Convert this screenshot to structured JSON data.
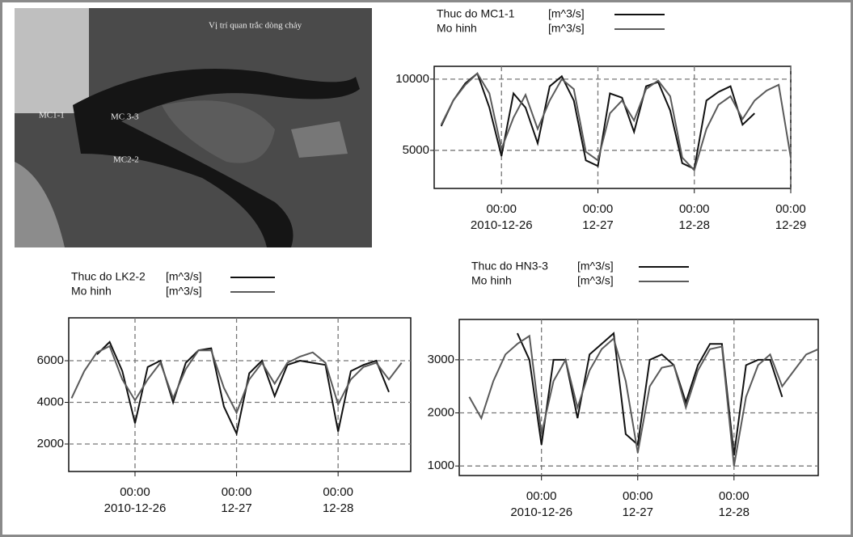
{
  "map": {
    "title": "Vị trí quan trắc dòng chảy",
    "labels": [
      "MC1-1",
      "MC 3-3",
      "MC2-2"
    ]
  },
  "chart_data": [
    {
      "type": "line",
      "legend": "above",
      "x": [
        "2010-12-25 09:00",
        "2010-12-25 12:00",
        "2010-12-25 15:00",
        "2010-12-25 18:00",
        "2010-12-25 21:00",
        "2010-12-26 00:00",
        "2010-12-26 03:00",
        "2010-12-26 06:00",
        "2010-12-26 09:00",
        "2010-12-26 12:00",
        "2010-12-26 15:00",
        "2010-12-26 18:00",
        "2010-12-26 21:00",
        "2010-12-27 00:00",
        "2010-12-27 03:00",
        "2010-12-27 06:00",
        "2010-12-27 09:00",
        "2010-12-27 12:00",
        "2010-12-27 15:00",
        "2010-12-27 18:00",
        "2010-12-27 21:00",
        "2010-12-28 00:00",
        "2010-12-28 03:00",
        "2010-12-28 06:00",
        "2010-12-28 09:00",
        "2010-12-28 12:00",
        "2010-12-28 15:00",
        "2010-12-28 18:00",
        "2010-12-28 21:00",
        "2010-12-29 00:00"
      ],
      "series": [
        {
          "name": "Thuc do MC1-1",
          "unit": "[m^3/s]",
          "color": "#111111",
          "values": [
            6700,
            8500,
            9700,
            10400,
            8000,
            4600,
            9000,
            8000,
            5500,
            9500,
            10200,
            8500,
            4300,
            3900,
            9000,
            8700,
            6300,
            9500,
            9800,
            7800,
            4100,
            3700,
            8500,
            9100,
            9500,
            6800,
            7600,
            null,
            null,
            null
          ]
        },
        {
          "name": "Mo hinh",
          "unit": "[m^3/s]",
          "color": "#5a5a5a",
          "values": [
            6800,
            8500,
            9600,
            10400,
            9000,
            5100,
            7300,
            8900,
            6500,
            8500,
            10000,
            9300,
            4900,
            4300,
            7600,
            8500,
            7100,
            9300,
            9900,
            8800,
            4500,
            3600,
            6500,
            8200,
            8800,
            7200,
            8500,
            9200,
            9600,
            4500
          ]
        }
      ],
      "xlim": [
        "2010-12-25 07:15",
        "2010-12-29 00:00"
      ],
      "xticks": [
        {
          "value": "2010-12-26 00:00",
          "label": [
            "00:00",
            "2010-12-26"
          ]
        },
        {
          "value": "2010-12-27 00:00",
          "label": [
            "00:00",
            "12-27"
          ]
        },
        {
          "value": "2010-12-28 00:00",
          "label": [
            "00:00",
            "12-28"
          ]
        },
        {
          "value": "2010-12-29 00:00",
          "label": [
            "00:00",
            "12-29"
          ]
        }
      ],
      "ylim": [
        2330,
        10900
      ],
      "yticks": [
        5000,
        10000
      ],
      "grid": true
    },
    {
      "type": "line",
      "legend": "above",
      "x": [
        "2010-12-25 09:00",
        "2010-12-25 12:00",
        "2010-12-25 15:00",
        "2010-12-25 18:00",
        "2010-12-25 21:00",
        "2010-12-26 00:00",
        "2010-12-26 03:00",
        "2010-12-26 06:00",
        "2010-12-26 09:00",
        "2010-12-26 12:00",
        "2010-12-26 15:00",
        "2010-12-26 18:00",
        "2010-12-26 21:00",
        "2010-12-27 00:00",
        "2010-12-27 03:00",
        "2010-12-27 06:00",
        "2010-12-27 09:00",
        "2010-12-27 12:00",
        "2010-12-27 15:00",
        "2010-12-27 18:00",
        "2010-12-27 21:00",
        "2010-12-28 00:00",
        "2010-12-28 03:00",
        "2010-12-28 06:00",
        "2010-12-28 09:00",
        "2010-12-28 12:00",
        "2010-12-28 15:00"
      ],
      "series": [
        {
          "name": "Thuc do LK2-2",
          "unit": "[m^3/s]",
          "color": "#111111",
          "values": [
            null,
            null,
            6300,
            6900,
            5500,
            3000,
            5700,
            6000,
            4000,
            5900,
            6500,
            6600,
            3800,
            2500,
            5400,
            6000,
            4300,
            5800,
            6000,
            5900,
            5800,
            2600,
            5500,
            5800,
            6000,
            4500,
            null
          ]
        },
        {
          "name": "Mo hinh",
          "unit": "[m^3/s]",
          "color": "#5a5a5a",
          "values": [
            4200,
            5500,
            6400,
            6700,
            5100,
            4100,
            5100,
            5900,
            4200,
            5600,
            6500,
            6500,
            4700,
            3500,
            5100,
            5900,
            4900,
            5900,
            6200,
            6400,
            5900,
            3900,
            5100,
            5700,
            5900,
            5100,
            5900
          ]
        }
      ],
      "xlim": [
        "2010-12-25 08:20",
        "2010-12-28 17:10"
      ],
      "xticks": [
        {
          "value": "2010-12-26 00:00",
          "label": [
            "00:00",
            "2010-12-26"
          ]
        },
        {
          "value": "2010-12-27 00:00",
          "label": [
            "00:00",
            "12-27"
          ]
        },
        {
          "value": "2010-12-28 00:00",
          "label": [
            "00:00",
            "12-28"
          ]
        }
      ],
      "ylim": [
        680,
        8060
      ],
      "yticks": [
        2000,
        4000,
        6000
      ],
      "grid": true
    },
    {
      "type": "line",
      "legend": "above",
      "x": [
        "2010-12-25 06:00",
        "2010-12-25 09:00",
        "2010-12-25 12:00",
        "2010-12-25 15:00",
        "2010-12-25 18:00",
        "2010-12-25 21:00",
        "2010-12-26 00:00",
        "2010-12-26 03:00",
        "2010-12-26 06:00",
        "2010-12-26 09:00",
        "2010-12-26 12:00",
        "2010-12-26 15:00",
        "2010-12-26 18:00",
        "2010-12-26 21:00",
        "2010-12-27 00:00",
        "2010-12-27 03:00",
        "2010-12-27 06:00",
        "2010-12-27 09:00",
        "2010-12-27 12:00",
        "2010-12-27 15:00",
        "2010-12-27 18:00",
        "2010-12-27 21:00",
        "2010-12-28 00:00",
        "2010-12-28 03:00",
        "2010-12-28 06:00",
        "2010-12-28 09:00",
        "2010-12-28 12:00",
        "2010-12-28 15:00",
        "2010-12-28 18:00",
        "2010-12-28 21:00"
      ],
      "series": [
        {
          "name": "Thuc do HN3-3",
          "unit": "[m^3/s]",
          "color": "#111111",
          "values": [
            null,
            null,
            null,
            null,
            3500,
            3000,
            1400,
            3000,
            3000,
            1900,
            3100,
            3300,
            3500,
            1600,
            1400,
            3000,
            3100,
            2900,
            2200,
            2900,
            3300,
            3300,
            1200,
            2900,
            3000,
            3000,
            2300,
            null,
            null,
            null
          ]
        },
        {
          "name": "Mo hinh",
          "unit": "[m^3/s]",
          "color": "#5a5a5a",
          "values": [
            2300,
            1900,
            2600,
            3100,
            3300,
            3450,
            1600,
            2600,
            3000,
            2100,
            2800,
            3200,
            3400,
            2600,
            1250,
            2500,
            2850,
            2900,
            2100,
            2800,
            3200,
            3250,
            1000,
            2300,
            2900,
            3100,
            2500,
            2800,
            3100,
            3200
          ]
        }
      ],
      "xlim": [
        "2010-12-25 03:30",
        "2010-12-28 21:00"
      ],
      "xticks": [
        {
          "value": "2010-12-26 00:00",
          "label": [
            "00:00",
            "2010-12-26"
          ]
        },
        {
          "value": "2010-12-27 00:00",
          "label": [
            "00:00",
            "12-27"
          ]
        },
        {
          "value": "2010-12-28 00:00",
          "label": [
            "00:00",
            "12-28"
          ]
        }
      ],
      "ylim": [
        820,
        3760
      ],
      "yticks": [
        1000,
        2000,
        3000
      ],
      "grid": true
    }
  ]
}
